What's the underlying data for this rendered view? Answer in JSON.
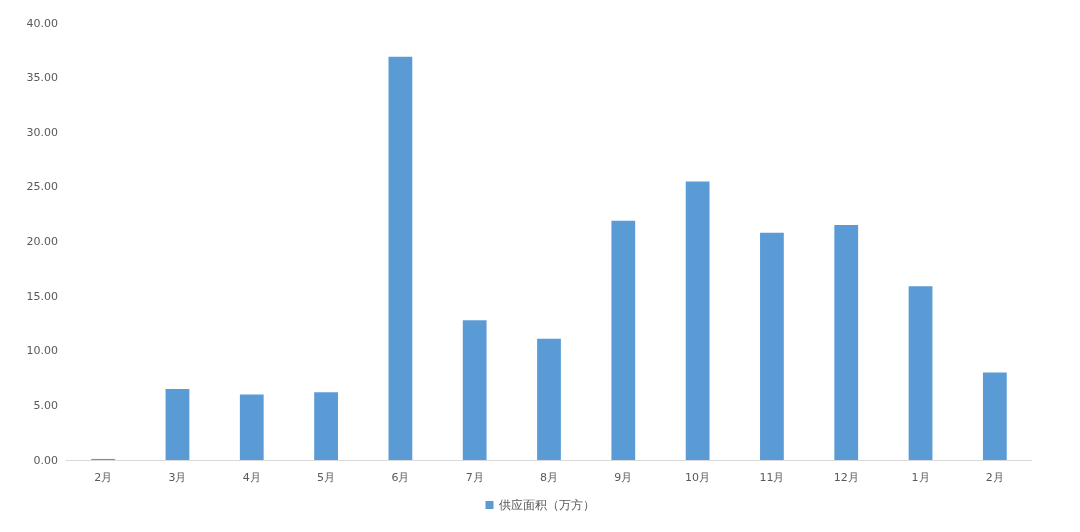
{
  "chart_data": {
    "type": "bar",
    "categories": [
      "2月",
      "3月",
      "4月",
      "5月",
      "6月",
      "7月",
      "8月",
      "9月",
      "10月",
      "11月",
      "12月",
      "1月",
      "2月"
    ],
    "series": [
      {
        "name": "供应面积（万方）",
        "color": "#5b9bd5",
        "values": [
          0.1,
          6.5,
          6.0,
          6.2,
          36.9,
          12.8,
          11.1,
          21.9,
          25.5,
          20.8,
          21.5,
          15.9,
          8.0
        ]
      }
    ],
    "ylim": [
      0,
      40
    ],
    "yticks": [
      {
        "value": 0,
        "label": "0.00"
      },
      {
        "value": 5,
        "label": "5.00"
      },
      {
        "value": 10,
        "label": "10.00"
      },
      {
        "value": 15,
        "label": "15.00"
      },
      {
        "value": 20,
        "label": "20.00"
      },
      {
        "value": 25,
        "label": "25.00"
      },
      {
        "value": 30,
        "label": "30.00"
      },
      {
        "value": 35,
        "label": "35.00"
      },
      {
        "value": 40,
        "label": "40.00"
      }
    ],
    "grid": false,
    "legend": "bottom"
  }
}
